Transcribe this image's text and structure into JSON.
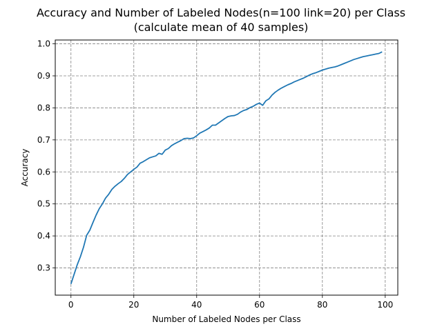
{
  "chart_data": {
    "type": "line",
    "title": [
      "Accuracy and Number of Labeled Nodes(n=100 link=20) per Class",
      "(calculate mean of 40 samples)"
    ],
    "xlabel": "Number of Labeled Nodes per Class",
    "ylabel": "Accuracy",
    "xlim": [
      -5,
      104
    ],
    "ylim": [
      0.215,
      1.012
    ],
    "xticks": [
      0,
      20,
      40,
      60,
      80,
      100
    ],
    "xtick_labels": [
      "0",
      "20",
      "40",
      "60",
      "80",
      "100"
    ],
    "yticks": [
      0.3,
      0.4,
      0.5,
      0.6,
      0.7,
      0.8,
      0.9,
      1.0
    ],
    "ytick_labels": [
      "0.3",
      "0.4",
      "0.5",
      "0.6",
      "0.7",
      "0.8",
      "0.9",
      "1.0"
    ],
    "grid": true,
    "grid_style": "dashed",
    "series": [
      {
        "color": "#1f77b4",
        "x": [
          0,
          1,
          2,
          3,
          4,
          5,
          6,
          7,
          8,
          9,
          10,
          11,
          12,
          13,
          14,
          15,
          16,
          17,
          18,
          19,
          20,
          21,
          22,
          23,
          24,
          25,
          26,
          27,
          28,
          29,
          30,
          31,
          32,
          33,
          34,
          35,
          36,
          37,
          38,
          39,
          40,
          41,
          42,
          43,
          44,
          45,
          46,
          47,
          48,
          49,
          50,
          51,
          52,
          53,
          54,
          55,
          56,
          57,
          58,
          59,
          60,
          61,
          62,
          63,
          64,
          65,
          66,
          67,
          68,
          69,
          70,
          71,
          72,
          73,
          74,
          75,
          76,
          77,
          78,
          79,
          80,
          81,
          82,
          83,
          84,
          85,
          86,
          87,
          88,
          89,
          90,
          91,
          92,
          93,
          94,
          95,
          96,
          97,
          98,
          99
        ],
        "values": [
          0.25,
          0.28,
          0.31,
          0.335,
          0.365,
          0.402,
          0.418,
          0.442,
          0.465,
          0.485,
          0.5,
          0.518,
          0.53,
          0.545,
          0.555,
          0.563,
          0.57,
          0.58,
          0.592,
          0.6,
          0.608,
          0.615,
          0.627,
          0.632,
          0.638,
          0.644,
          0.647,
          0.65,
          0.658,
          0.655,
          0.668,
          0.673,
          0.682,
          0.688,
          0.693,
          0.698,
          0.704,
          0.705,
          0.704,
          0.706,
          0.713,
          0.721,
          0.726,
          0.731,
          0.737,
          0.746,
          0.746,
          0.753,
          0.76,
          0.767,
          0.773,
          0.775,
          0.776,
          0.78,
          0.787,
          0.792,
          0.795,
          0.801,
          0.805,
          0.811,
          0.815,
          0.808,
          0.822,
          0.828,
          0.84,
          0.849,
          0.856,
          0.862,
          0.867,
          0.872,
          0.876,
          0.881,
          0.885,
          0.889,
          0.893,
          0.898,
          0.903,
          0.907,
          0.91,
          0.914,
          0.918,
          0.921,
          0.924,
          0.926,
          0.928,
          0.931,
          0.935,
          0.939,
          0.943,
          0.947,
          0.951,
          0.954,
          0.957,
          0.96,
          0.962,
          0.964,
          0.966,
          0.968,
          0.97,
          0.975
        ]
      }
    ]
  }
}
